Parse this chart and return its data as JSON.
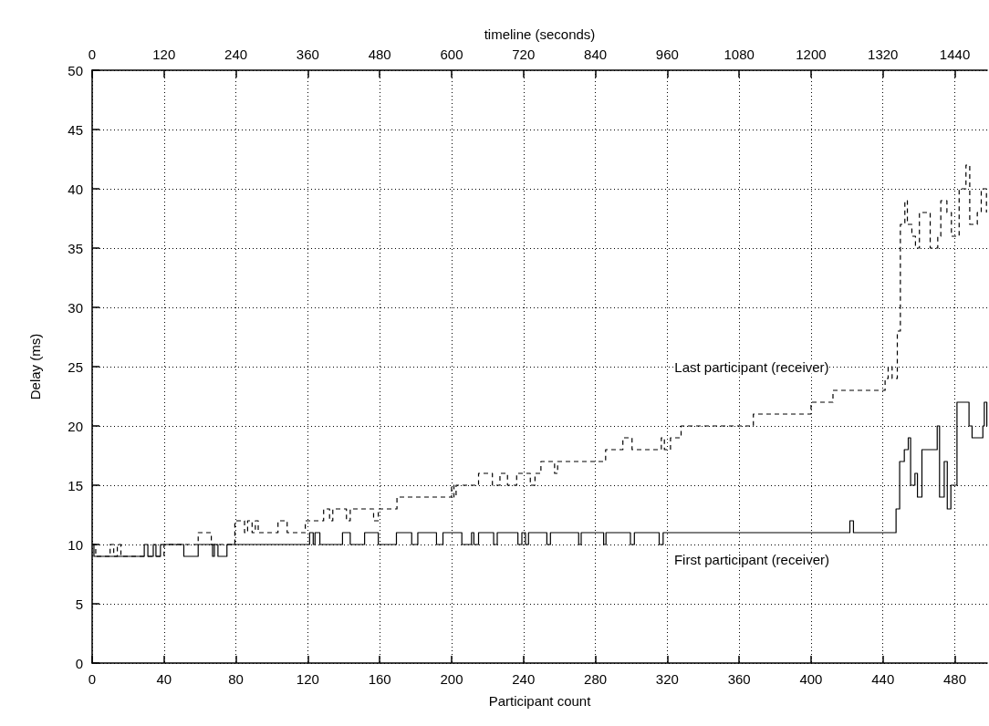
{
  "chart_data": {
    "type": "step",
    "xlabel": "Participant count",
    "x2label": "timeline (seconds)",
    "ylabel": "Delay (ms)",
    "xlim": [
      0,
      498
    ],
    "xticks": [
      0,
      40,
      80,
      120,
      160,
      200,
      240,
      280,
      320,
      360,
      400,
      440,
      480
    ],
    "x2lim": [
      0,
      1494
    ],
    "x2ticks": [
      0,
      120,
      240,
      360,
      480,
      600,
      720,
      840,
      960,
      1080,
      1200,
      1320,
      1440
    ],
    "ylim": [
      0,
      50
    ],
    "yticks": [
      0,
      5,
      10,
      15,
      20,
      25,
      30,
      35,
      40,
      45,
      50
    ],
    "grid": true,
    "legend": false,
    "marker": "none",
    "series": [
      {
        "name": "Last participant (receiver)",
        "color": "#000000",
        "line_style": "dashed",
        "x": [
          0,
          2,
          10,
          12,
          14,
          16,
          40,
          59,
          66.3,
          79.4,
          84.8,
          86.5,
          89,
          90.8,
          92.4,
          103.4,
          108.5,
          118.6,
          128.8,
          132.1,
          133.9,
          141.5,
          143.6,
          156.6,
          159.2,
          169.6,
          200,
          201.3,
          202.5,
          215,
          222.7,
          226.9,
          231.1,
          236.2,
          243.8,
          246.4,
          249.7,
          257.3,
          259,
          285.7,
          295.3,
          300.4,
          316.7,
          318.4,
          321.8,
          327.7,
          367.9,
          400,
          412.2,
          441.2,
          442.9,
          445.1,
          448,
          449.7,
          452.2,
          453.6,
          456.1,
          458.1,
          460.3,
          466.3,
          470.5,
          472.2,
          475.6,
          478.1,
          482.4,
          486.2,
          488.3,
          492.5,
          494.7,
          497.6,
          497.8
        ],
        "values": [
          10,
          9,
          10,
          9,
          10,
          9,
          10,
          11,
          10,
          12,
          11,
          12,
          11,
          12,
          11,
          12,
          11,
          12,
          13,
          12,
          13,
          12,
          13,
          12,
          13,
          14,
          15,
          14,
          15,
          16,
          15,
          16,
          15,
          16,
          15,
          16,
          17,
          16,
          17,
          18,
          19,
          18,
          19,
          18,
          19,
          20,
          21,
          22,
          23,
          24,
          25,
          24,
          28,
          37,
          39,
          37,
          36,
          35,
          38,
          35,
          36,
          39,
          38,
          36,
          40,
          42,
          37,
          38,
          40,
          38,
          38
        ]
      },
      {
        "name": "First participant (receiver)",
        "color": "#000000",
        "line_style": "solid",
        "x": [
          0,
          1,
          29,
          31,
          34,
          35.5,
          38,
          51,
          59,
          67,
          68,
          70,
          75,
          121,
          123,
          124,
          126.7,
          139.3,
          143.6,
          151.6,
          159.2,
          169.3,
          177.8,
          181.2,
          191.6,
          195.2,
          205.7,
          211.1,
          212.4,
          215,
          223.4,
          225.4,
          236.9,
          239.1,
          241.1,
          242.8,
          253,
          255,
          270.7,
          272.1,
          284.6,
          285.9,
          299.5,
          301.7,
          315.5,
          317.7,
          421.6,
          423.6,
          447.3,
          449.3,
          451.9,
          454.1,
          455.4,
          457.8,
          459.2,
          461.7,
          470.2,
          471.5,
          474.1,
          475.8,
          477.8,
          481.2,
          487.9,
          489.6,
          495.6,
          496.4,
          497.8
        ],
        "values": [
          10,
          9,
          10,
          9,
          10,
          9,
          10,
          9,
          10,
          9,
          10,
          9,
          10,
          11,
          10,
          11,
          10,
          11,
          10,
          11,
          10,
          11,
          10,
          11,
          10,
          11,
          10,
          11,
          10,
          11,
          10,
          11,
          10,
          11,
          10,
          11,
          10,
          11,
          10,
          11,
          10,
          11,
          10,
          11,
          10,
          11,
          12,
          11,
          13,
          17,
          18,
          19,
          15,
          16,
          14,
          18,
          20,
          14,
          17,
          13,
          15,
          22,
          20,
          19,
          20,
          22,
          20
        ]
      }
    ]
  }
}
